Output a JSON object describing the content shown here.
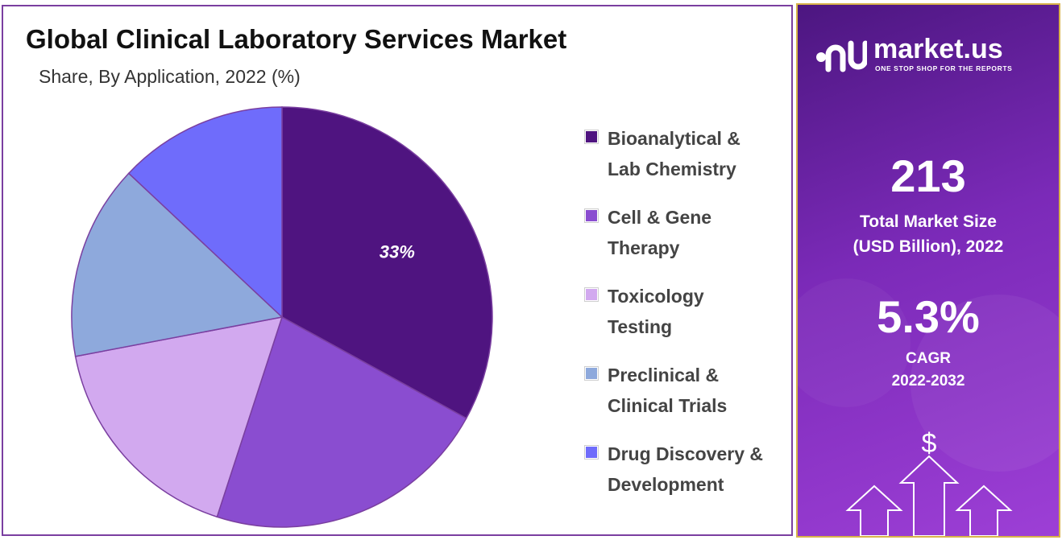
{
  "title": "Global Clinical Laboratory Services Market",
  "subtitle": "Share, By Application, 2022 (%)",
  "chart_data": {
    "type": "pie",
    "title": "Global Clinical Laboratory Services Market",
    "subtitle": "Share, By Application, 2022 (%)",
    "categories": [
      "Bioanalytical & Lab Chemistry",
      "Cell & Gene Therapy",
      "Toxicology Testing",
      "Preclinical & Clinical Trials",
      "Drug Discovery & Development"
    ],
    "values": [
      33,
      22,
      17,
      15,
      13
    ],
    "colors": [
      "#4f1480",
      "#8a4dd0",
      "#d2a9ef",
      "#8ea9dc",
      "#6f6cfb"
    ],
    "data_labels": [
      "33%",
      "",
      "",
      "",
      ""
    ],
    "legend_position": "right"
  },
  "legend": [
    {
      "line1": "Bioanalytical &",
      "line2": "Lab Chemistry",
      "color": "#4f1480"
    },
    {
      "line1": "Cell & Gene",
      "line2": "Therapy",
      "color": "#8a4dd0"
    },
    {
      "line1": "Toxicology",
      "line2": "Testing",
      "color": "#d2a9ef"
    },
    {
      "line1": "Preclinical &",
      "line2": "Clinical Trials",
      "color": "#8ea9dc"
    },
    {
      "line1": "Drug Discovery &",
      "line2": "Development",
      "color": "#6f6cfb"
    }
  ],
  "sidebar": {
    "brand_name": "market.us",
    "brand_tagline": "ONE STOP SHOP FOR THE REPORTS",
    "market_size_value": "213",
    "market_size_label_line1": "Total Market Size",
    "market_size_label_line2": "(USD Billion), 2022",
    "cagr_value": "5.3%",
    "cagr_label_line1": "CAGR",
    "cagr_label_line2": "2022-2032",
    "dollar_symbol": "$",
    "icons": [
      "market-us-logo-icon",
      "dollar-icon",
      "up-arrow-icon"
    ]
  }
}
